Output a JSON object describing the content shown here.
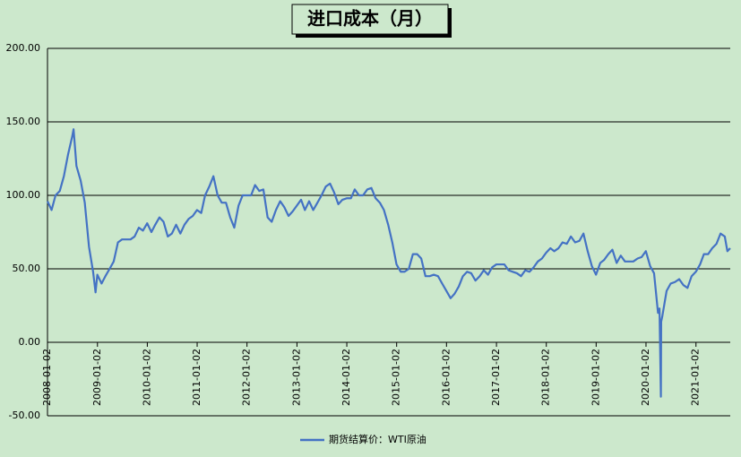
{
  "chart_data": {
    "type": "line",
    "title": "进口成本（月）",
    "x": [
      "2008-01-02",
      "2008-02-01",
      "2008-03-01",
      "2008-04-01",
      "2008-05-01",
      "2008-06-01",
      "2008-07-01",
      "2008-07-11",
      "2008-08-01",
      "2008-09-01",
      "2008-10-01",
      "2008-11-01",
      "2008-12-01",
      "2008-12-19",
      "2009-01-01",
      "2009-02-01",
      "2009-03-01",
      "2009-04-01",
      "2009-05-01",
      "2009-06-01",
      "2009-07-01",
      "2009-08-01",
      "2009-09-01",
      "2009-10-01",
      "2009-11-01",
      "2009-12-01",
      "2010-01-01",
      "2010-02-01",
      "2010-03-01",
      "2010-04-01",
      "2010-05-01",
      "2010-06-01",
      "2010-07-01",
      "2010-08-01",
      "2010-09-01",
      "2010-10-01",
      "2010-11-01",
      "2010-12-01",
      "2011-01-01",
      "2011-02-01",
      "2011-03-01",
      "2011-04-01",
      "2011-05-01",
      "2011-06-01",
      "2011-07-01",
      "2011-08-01",
      "2011-09-01",
      "2011-10-01",
      "2011-11-01",
      "2011-12-01",
      "2012-01-01",
      "2012-02-01",
      "2012-03-01",
      "2012-04-01",
      "2012-05-01",
      "2012-06-01",
      "2012-07-01",
      "2012-08-01",
      "2012-09-01",
      "2012-10-01",
      "2012-11-01",
      "2012-12-01",
      "2013-01-01",
      "2013-02-01",
      "2013-03-01",
      "2013-04-01",
      "2013-05-01",
      "2013-06-01",
      "2013-07-01",
      "2013-08-01",
      "2013-09-01",
      "2013-10-01",
      "2013-11-01",
      "2013-12-01",
      "2014-01-01",
      "2014-02-01",
      "2014-03-01",
      "2014-04-01",
      "2014-05-01",
      "2014-06-01",
      "2014-07-01",
      "2014-08-01",
      "2014-09-01",
      "2014-10-01",
      "2014-11-01",
      "2014-12-01",
      "2015-01-01",
      "2015-02-01",
      "2015-03-01",
      "2015-04-01",
      "2015-05-01",
      "2015-06-01",
      "2015-07-01",
      "2015-08-01",
      "2015-09-01",
      "2015-10-01",
      "2015-11-01",
      "2015-12-01",
      "2016-01-01",
      "2016-02-01",
      "2016-03-01",
      "2016-04-01",
      "2016-05-01",
      "2016-06-01",
      "2016-07-01",
      "2016-08-01",
      "2016-09-01",
      "2016-10-01",
      "2016-11-01",
      "2016-12-01",
      "2017-01-01",
      "2017-02-01",
      "2017-03-01",
      "2017-04-01",
      "2017-05-01",
      "2017-06-01",
      "2017-07-01",
      "2017-08-01",
      "2017-09-01",
      "2017-10-01",
      "2017-11-01",
      "2017-12-01",
      "2018-01-01",
      "2018-02-01",
      "2018-03-01",
      "2018-04-01",
      "2018-05-01",
      "2018-06-01",
      "2018-07-01",
      "2018-08-01",
      "2018-09-01",
      "2018-10-01",
      "2018-11-01",
      "2018-12-01",
      "2019-01-01",
      "2019-02-01",
      "2019-03-01",
      "2019-04-01",
      "2019-05-01",
      "2019-06-01",
      "2019-07-01",
      "2019-08-01",
      "2019-09-01",
      "2019-10-01",
      "2019-11-01",
      "2019-12-01",
      "2020-01-01",
      "2020-02-01",
      "2020-03-01",
      "2020-03-30",
      "2020-04-10",
      "2020-04-20",
      "2020-04-22",
      "2020-05-01",
      "2020-06-01",
      "2020-07-01",
      "2020-08-01",
      "2020-09-01",
      "2020-10-01",
      "2020-11-01",
      "2020-12-01",
      "2021-01-01",
      "2021-02-01",
      "2021-03-01",
      "2021-04-01",
      "2021-05-01",
      "2021-06-01",
      "2021-07-01",
      "2021-08-01",
      "2021-08-20",
      "2021-09-10"
    ],
    "series": [
      {
        "name": "期货结算价：WTI原油",
        "color": "#4472c4",
        "values": [
          96,
          90,
          100,
          103,
          113,
          128,
          140,
          145,
          120,
          110,
          95,
          65,
          48,
          34,
          46,
          40,
          45,
          50,
          55,
          68,
          70,
          70,
          70,
          72,
          78,
          76,
          81,
          75,
          80,
          85,
          82,
          72,
          74,
          80,
          74,
          80,
          84,
          86,
          90,
          88,
          100,
          106,
          113,
          100,
          95,
          95,
          85,
          78,
          93,
          100,
          100,
          100,
          107,
          103,
          104,
          85,
          82,
          90,
          96,
          92,
          86,
          89,
          93,
          97,
          90,
          96,
          90,
          95,
          100,
          106,
          108,
          102,
          94,
          97,
          98,
          98,
          104,
          100,
          100,
          104,
          105,
          98,
          95,
          90,
          80,
          68,
          53,
          48,
          48,
          50,
          60,
          60,
          57,
          45,
          45,
          46,
          45,
          40,
          35,
          30,
          33,
          38,
          45,
          48,
          47,
          42,
          45,
          49,
          46,
          51,
          53,
          53,
          53,
          49,
          48,
          47,
          45,
          49,
          48,
          51,
          55,
          57,
          61,
          64,
          62,
          64,
          68,
          67,
          72,
          68,
          69,
          74,
          62,
          52,
          46,
          54,
          56,
          60,
          63,
          54,
          59,
          55,
          55,
          55,
          57,
          58,
          62,
          52,
          47,
          20,
          23,
          -37,
          14,
          18,
          35,
          40,
          41,
          43,
          39,
          37,
          45,
          48,
          53,
          60,
          60,
          64,
          67,
          74,
          72,
          62,
          64
        ]
      }
    ],
    "xlim": [
      "2008-01-02",
      "2021-09-10"
    ],
    "xticks": [
      "2008-01-02",
      "2009-01-02",
      "2010-01-02",
      "2011-01-02",
      "2012-01-02",
      "2013-01-02",
      "2014-01-02",
      "2015-01-02",
      "2016-01-02",
      "2017-01-02",
      "2018-01-02",
      "2019-01-02",
      "2020-01-02",
      "2021-01-02"
    ],
    "ylim": [
      -50,
      200
    ],
    "yticks": [
      {
        "value": -50,
        "label": "-50.00"
      },
      {
        "value": 0,
        "label": "0.00"
      },
      {
        "value": 50,
        "label": "50.00"
      },
      {
        "value": 100,
        "label": "100.00"
      },
      {
        "value": 150,
        "label": "150.00"
      },
      {
        "value": 200,
        "label": "200.00"
      }
    ],
    "grid": true
  }
}
